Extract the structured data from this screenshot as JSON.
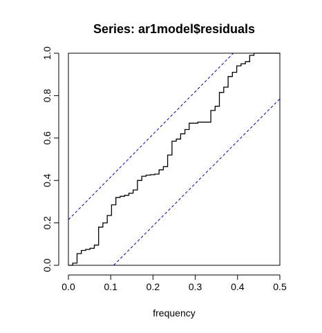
{
  "chart_data": {
    "type": "line",
    "title": "Series:  ar1model$residuals",
    "xlabel": "frequency",
    "ylabel": "",
    "xlim": [
      0,
      0.5
    ],
    "ylim": [
      0,
      1
    ],
    "x_ticks": [
      0.0,
      0.1,
      0.2,
      0.3,
      0.4,
      0.5
    ],
    "x_tick_labels": [
      "0.0",
      "0.1",
      "0.2",
      "0.3",
      "0.4",
      "0.5"
    ],
    "y_ticks": [
      0.0,
      0.2,
      0.4,
      0.6,
      0.8,
      1.0
    ],
    "y_tick_labels": [
      "0.0",
      "0.2",
      "0.4",
      "0.6",
      "0.8",
      "1.0"
    ],
    "grid": false,
    "series": [
      {
        "style": "step",
        "color": "#000000",
        "x": [
          0.0,
          0.0102,
          0.0204,
          0.0306,
          0.0408,
          0.051,
          0.0612,
          0.0714,
          0.0816,
          0.0918,
          0.102,
          0.1122,
          0.1224,
          0.1327,
          0.1429,
          0.1531,
          0.1633,
          0.1735,
          0.1837,
          0.1939,
          0.2041,
          0.2143,
          0.2245,
          0.2347,
          0.2449,
          0.2551,
          0.2653,
          0.2755,
          0.2857,
          0.2959,
          0.3061,
          0.3163,
          0.3265,
          0.3367,
          0.3469,
          0.3571,
          0.3673,
          0.3776,
          0.3878,
          0.398,
          0.4082,
          0.4184,
          0.4286,
          0.4388,
          0.449,
          0.4592,
          0.4694,
          0.4796,
          0.4898,
          0.5
        ],
        "y": [
          0.0,
          0.01,
          0.055,
          0.07,
          0.075,
          0.08,
          0.095,
          0.18,
          0.2,
          0.235,
          0.285,
          0.32,
          0.325,
          0.33,
          0.34,
          0.355,
          0.4,
          0.42,
          0.425,
          0.427,
          0.43,
          0.45,
          0.465,
          0.52,
          0.585,
          0.595,
          0.62,
          0.64,
          0.67,
          0.67,
          0.675,
          0.675,
          0.675,
          0.73,
          0.75,
          0.815,
          0.84,
          0.89,
          0.91,
          0.94,
          0.95,
          0.96,
          0.99,
          1.0,
          1.0,
          1.0,
          1.0,
          1.0,
          1.0,
          1.0
        ]
      },
      {
        "style": "dashed",
        "color": "#0000cc",
        "x": [
          0.0,
          0.39
        ],
        "y": [
          0.215,
          1.0
        ]
      },
      {
        "style": "dashed",
        "color": "#0000cc",
        "x": [
          0.107,
          0.5
        ],
        "y": [
          0.0,
          0.785
        ]
      }
    ]
  }
}
